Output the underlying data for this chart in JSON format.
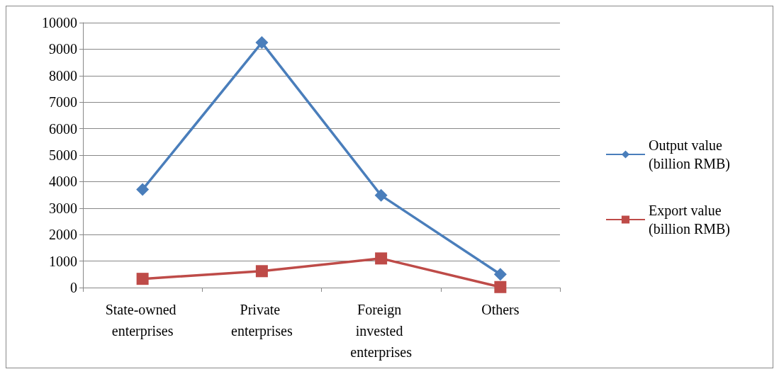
{
  "chart_data": {
    "type": "line",
    "categories": [
      "State-owned enterprises",
      "Private enterprises",
      "Foreign invested enterprises",
      "Others"
    ],
    "series": [
      {
        "name": "Output value (billion RMB)",
        "color": "#4a7ebb",
        "marker": "diamond",
        "values": [
          3700,
          9250,
          3480,
          500
        ]
      },
      {
        "name": "Export value (billion RMB)",
        "color": "#be4b48",
        "marker": "square",
        "values": [
          330,
          620,
          1100,
          20
        ]
      }
    ],
    "ylim": [
      0,
      10000
    ],
    "yticks": [
      0,
      1000,
      2000,
      3000,
      4000,
      5000,
      6000,
      7000,
      8000,
      9000,
      10000
    ],
    "grid": "y",
    "legend": "right"
  }
}
